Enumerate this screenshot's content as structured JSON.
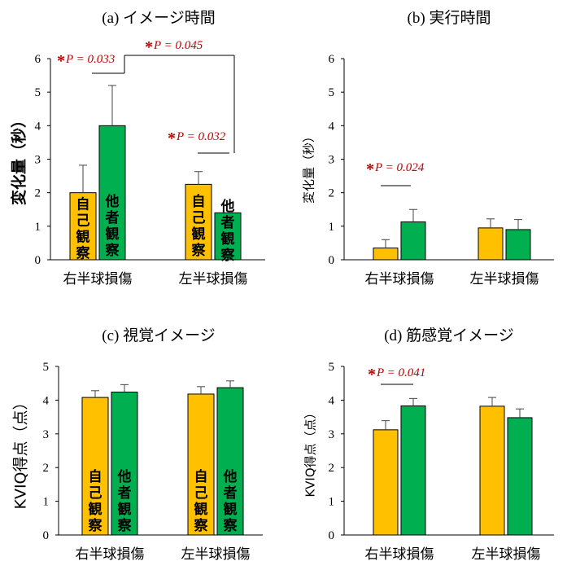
{
  "colors": {
    "self": "#FFC000",
    "other": "#00B050",
    "sig": "#C00000",
    "axis": "#000000"
  },
  "categories": [
    "右半球損傷",
    "左半球損傷"
  ],
  "bar_labels": {
    "self": "自己観察",
    "other": "他者観察"
  },
  "chart_data": [
    {
      "type": "bar",
      "title": "(a) イメージ時間",
      "ylabel": "変化量（秒）",
      "ylim": [
        0,
        6
      ],
      "yticks": [
        0,
        1,
        2,
        3,
        4,
        5,
        6
      ],
      "categories": [
        "右半球損傷",
        "左半球損傷"
      ],
      "series": [
        {
          "name": "自己観察",
          "values": [
            2.0,
            2.25
          ],
          "errors": [
            0.82,
            0.38
          ]
        },
        {
          "name": "他者観察",
          "values": [
            4.0,
            1.4
          ],
          "errors": [
            1.2,
            0.0
          ]
        }
      ],
      "annotations": [
        "P = 0.033",
        "P = 0.045",
        "P = 0.032"
      ]
    },
    {
      "type": "bar",
      "title": "(b) 実行時間",
      "ylabel": "変化量（秒）",
      "ylim": [
        0,
        6
      ],
      "yticks": [
        0,
        1,
        2,
        3,
        4,
        5,
        6
      ],
      "categories": [
        "右半球損傷",
        "左半球損傷"
      ],
      "series": [
        {
          "name": "自己観察",
          "values": [
            0.35,
            0.95
          ],
          "errors": [
            0.25,
            0.27
          ]
        },
        {
          "name": "他者観察",
          "values": [
            1.13,
            0.9
          ],
          "errors": [
            0.37,
            0.3
          ]
        }
      ],
      "annotations": [
        "P = 0.024"
      ]
    },
    {
      "type": "bar",
      "title": "(c) 視覚イメージ",
      "ylabel": "KVIQ得点（点）",
      "ylim": [
        0,
        5
      ],
      "yticks": [
        0,
        1,
        2,
        3,
        4,
        5
      ],
      "categories": [
        "右半球損傷",
        "左半球損傷"
      ],
      "series": [
        {
          "name": "自己観察",
          "values": [
            4.08,
            4.18
          ],
          "errors": [
            0.2,
            0.22
          ]
        },
        {
          "name": "他者観察",
          "values": [
            4.24,
            4.37
          ],
          "errors": [
            0.22,
            0.2
          ]
        }
      ],
      "annotations": []
    },
    {
      "type": "bar",
      "title": "(d) 筋感覚イメージ",
      "ylabel": "KVIQ得点（点）",
      "ylim": [
        0,
        5
      ],
      "yticks": [
        0,
        1,
        2,
        3,
        4,
        5
      ],
      "categories": [
        "右半球損傷",
        "左半球損傷"
      ],
      "series": [
        {
          "name": "自己観察",
          "values": [
            3.12,
            3.82
          ],
          "errors": [
            0.27,
            0.26
          ]
        },
        {
          "name": "他者観察",
          "values": [
            3.83,
            3.48
          ],
          "errors": [
            0.22,
            0.26
          ]
        }
      ],
      "annotations": [
        "P = 0.041"
      ]
    }
  ]
}
